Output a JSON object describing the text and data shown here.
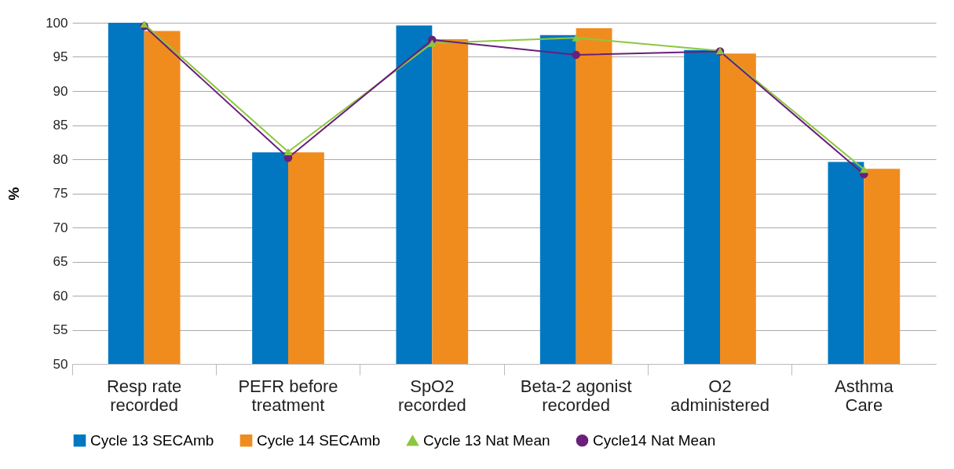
{
  "chart_data": {
    "type": "bar",
    "ylabel": "%",
    "categories": [
      "Resp rate recorded",
      "PEFR before treatment",
      "SpO2 recorded",
      "Beta-2 agonist recorded",
      "O2 administered",
      "Asthma Care"
    ],
    "series": [
      {
        "name": "Cycle 13 SECAmb",
        "color": "#0077c0",
        "values": [
          100,
          81.0,
          99.6,
          98.2,
          96.0,
          79.6
        ]
      },
      {
        "name": "Cycle 14 SECAmb",
        "color": "#f08c1e",
        "values": [
          98.8,
          81.0,
          97.6,
          99.2,
          95.5,
          78.6
        ]
      },
      {
        "name": "Cycle 13 Nat Mean",
        "type": "line",
        "marker": "triangle",
        "color": "#8dc63f",
        "values": [
          99.8,
          81.1,
          97.0,
          97.8,
          95.9,
          78.5
        ]
      },
      {
        "name": "Cycle14 Nat Mean",
        "type": "line",
        "marker": "circle",
        "color": "#6a1f7a",
        "values": [
          99.5,
          80.2,
          97.5,
          95.3,
          95.8,
          77.8
        ]
      }
    ],
    "ylim": [
      50,
      100
    ],
    "yticks": [
      50,
      55,
      60,
      65,
      70,
      75,
      80,
      85,
      90,
      95,
      100
    ],
    "grid": "y",
    "legend": "bottom"
  }
}
